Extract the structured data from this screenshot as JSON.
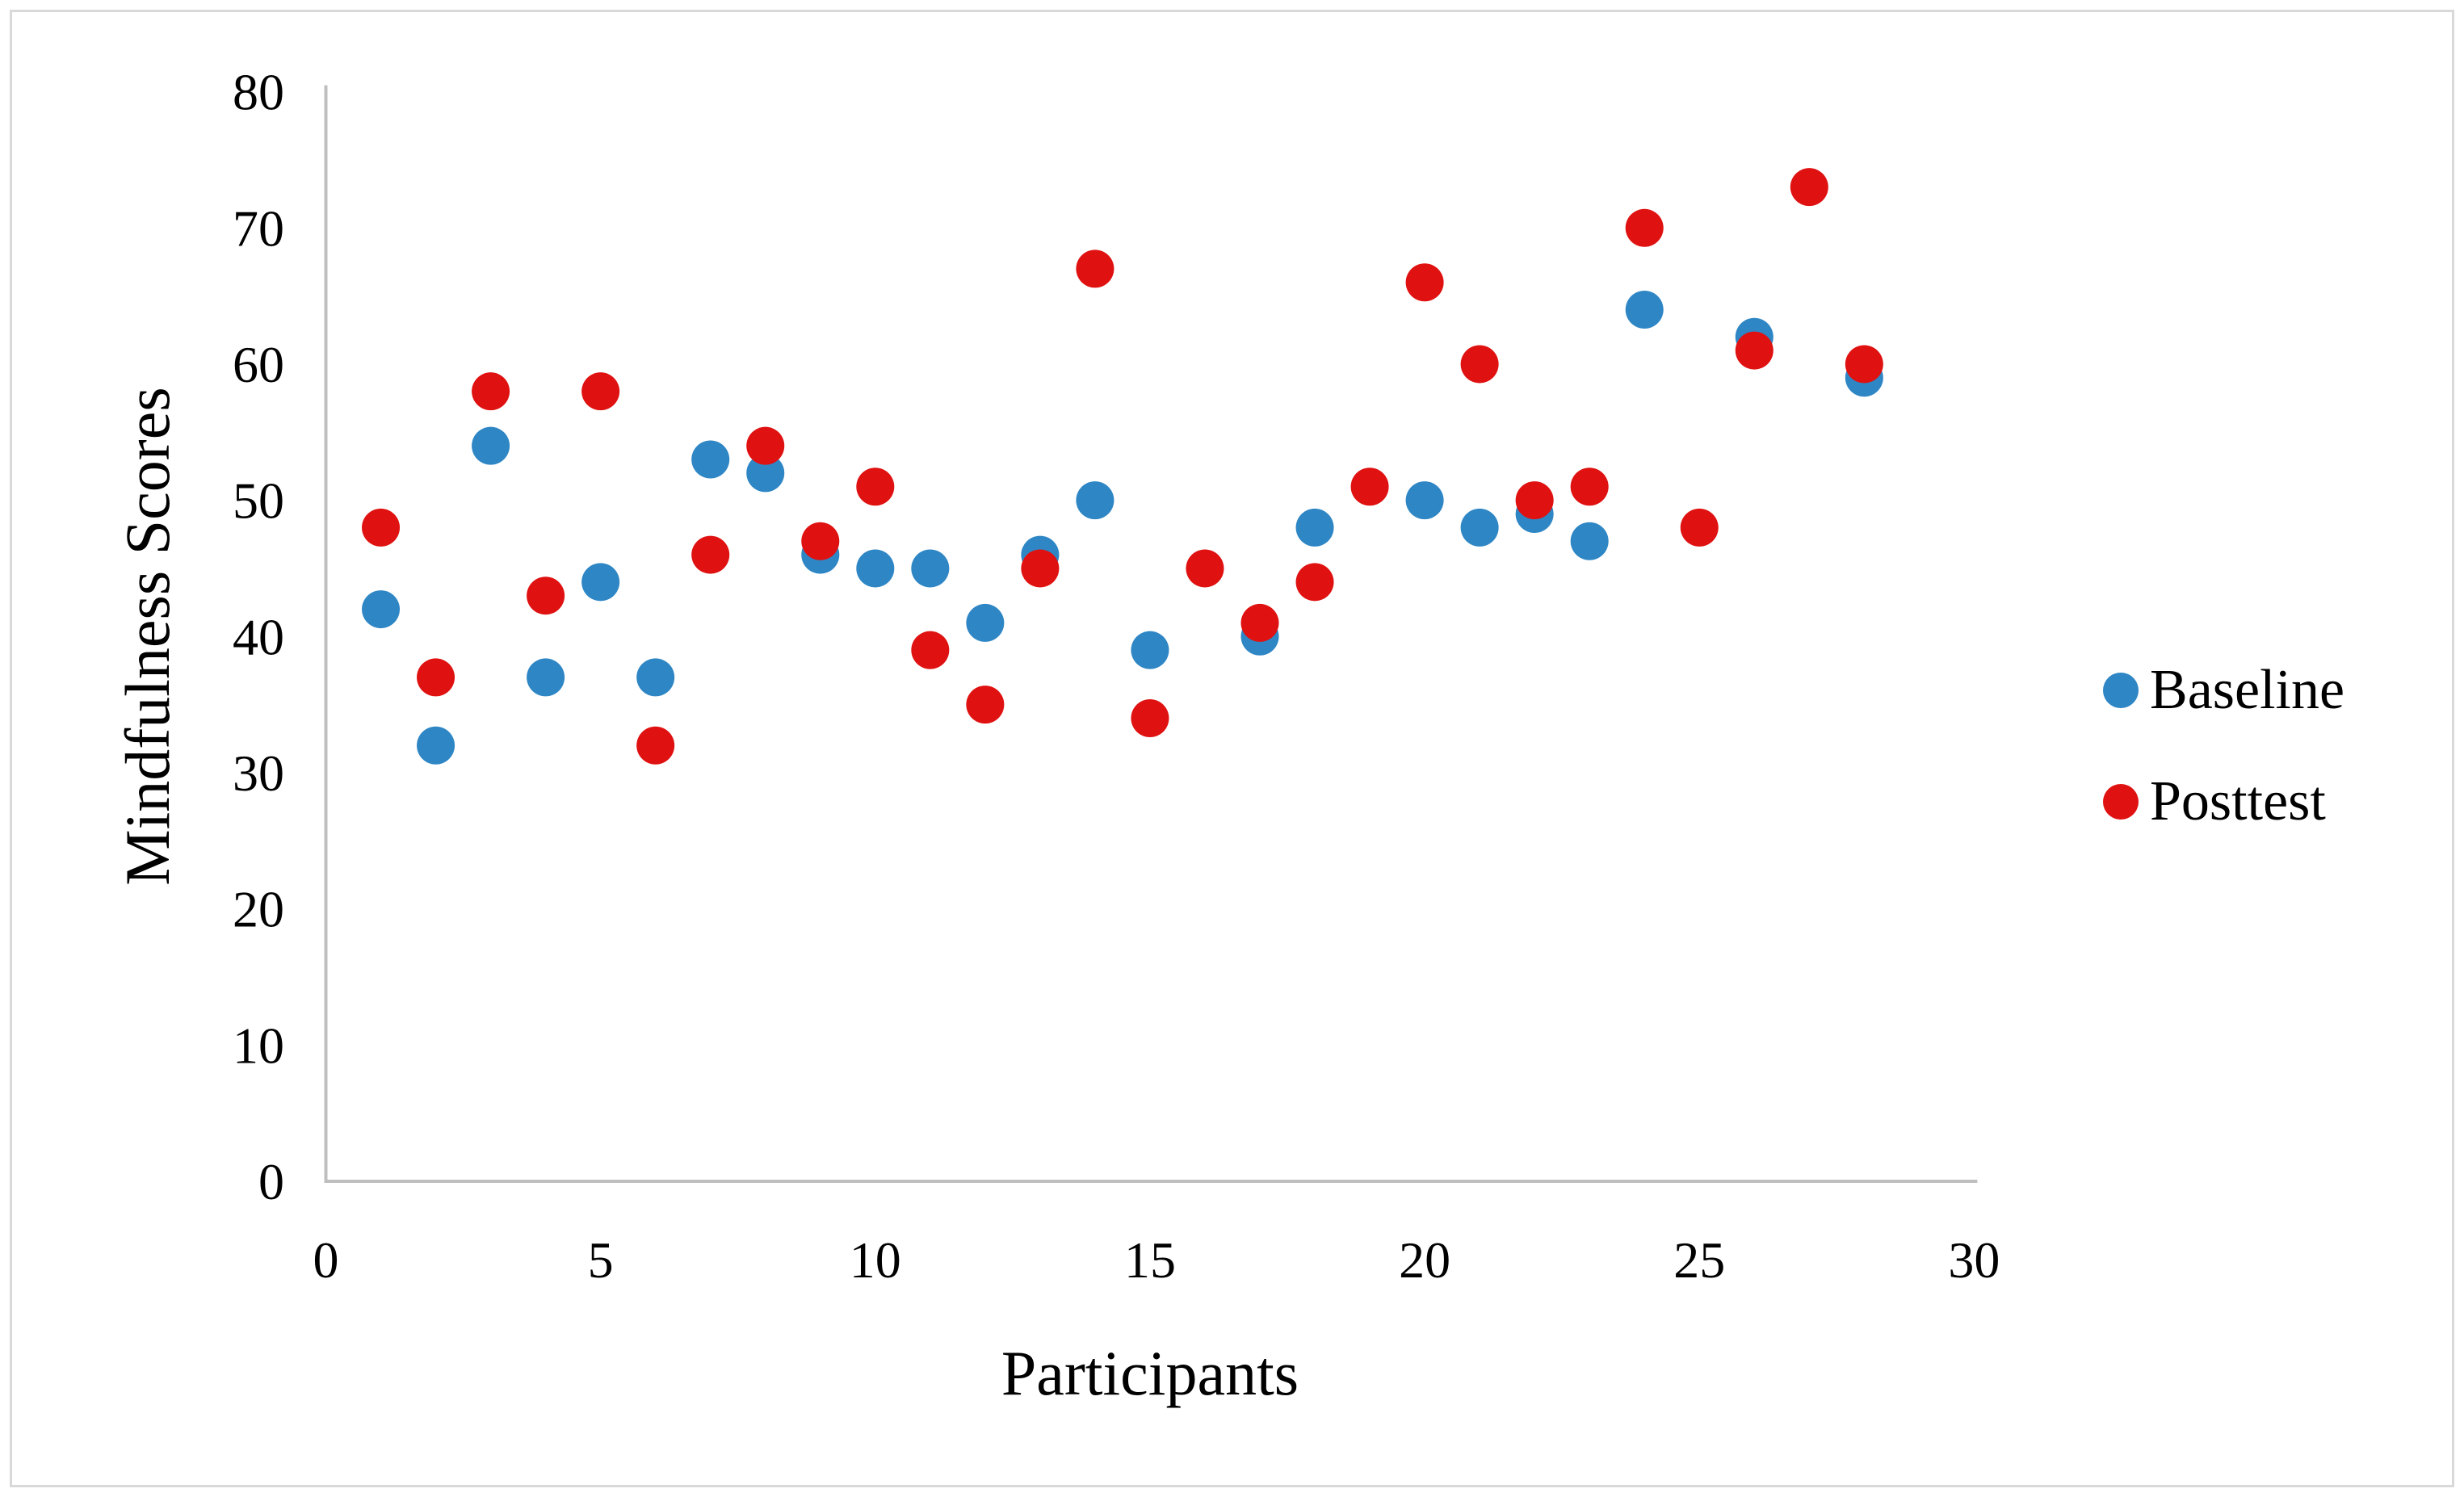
{
  "chart_data": {
    "type": "scatter",
    "title": "",
    "xlabel": "Participants",
    "ylabel": "Mindfulness Scores",
    "xlim": [
      0,
      30
    ],
    "ylim": [
      0,
      80
    ],
    "x_ticks": [
      0,
      5,
      10,
      15,
      20,
      25,
      30
    ],
    "y_ticks": [
      0,
      10,
      20,
      30,
      40,
      50,
      60,
      70,
      80
    ],
    "grid": false,
    "legend_position": "right",
    "x": [
      1,
      2,
      3,
      4,
      5,
      6,
      7,
      8,
      9,
      10,
      11,
      12,
      13,
      14,
      15,
      16,
      17,
      18,
      19,
      20,
      21,
      22,
      23,
      24,
      25,
      26,
      27,
      28
    ],
    "series": [
      {
        "name": "Baseline",
        "color": "#2E86C5",
        "values": [
          42,
          32,
          54,
          37,
          44,
          37,
          53,
          52,
          46,
          45,
          45,
          41,
          46,
          50,
          39,
          null,
          40,
          48,
          null,
          50,
          48,
          49,
          47,
          64,
          null,
          62,
          null,
          59
        ]
      },
      {
        "name": "Posttest",
        "color": "#DF1111",
        "values": [
          48,
          37,
          58,
          43,
          58,
          32,
          46,
          54,
          47,
          51,
          39,
          35,
          45,
          67,
          34,
          45,
          41,
          44,
          51,
          66,
          60,
          50,
          51,
          70,
          48,
          61,
          73,
          60
        ]
      }
    ]
  },
  "layout_colors": {
    "axis_line": "#BFBFBF",
    "outer_border": "#D9D9D9",
    "text": "#000000"
  }
}
